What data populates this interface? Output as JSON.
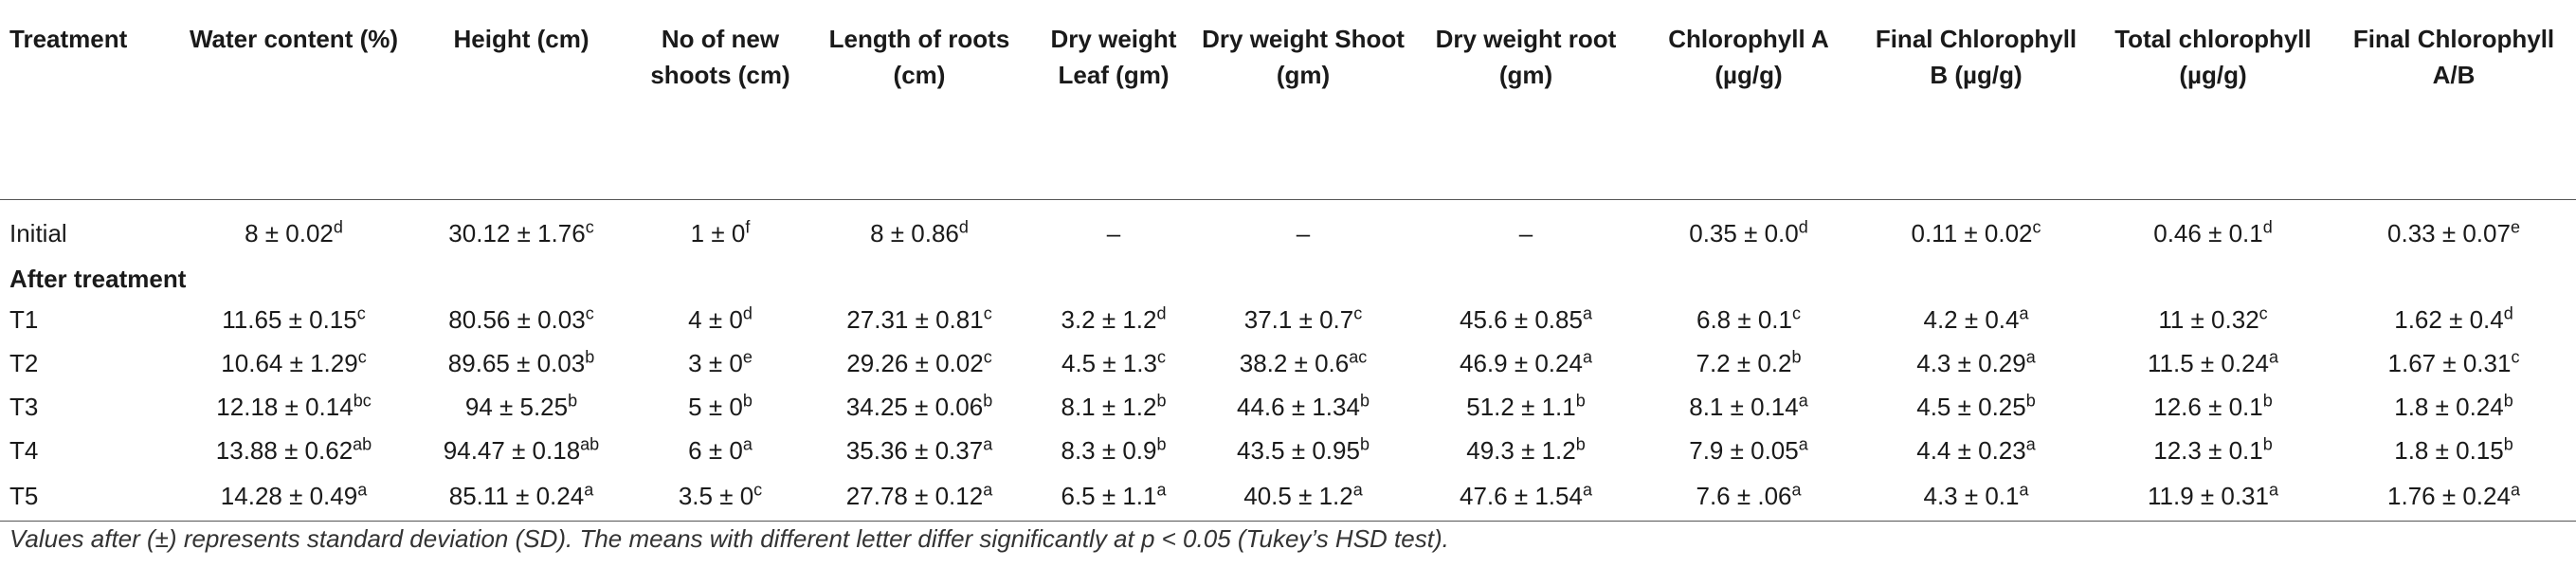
{
  "headers": [
    "Treatment",
    "Water content (%)",
    "Height (cm)",
    "No of new shoots (cm)",
    "Length of roots (cm)",
    "Dry weight Leaf (gm)",
    "Dry weight Shoot (gm)",
    "Dry weight root (gm)",
    "Chlorophyll A (µg/g)",
    "Final Chlorophyll B (µg/g)",
    "Total chlorophyll (µg/g)",
    "Final Chlorophyll A/B"
  ],
  "initial_row": {
    "label": "Initial",
    "cells": [
      {
        "v": "8 ± 0.02",
        "s": "d"
      },
      {
        "v": "30.12 ± 1.76",
        "s": "c"
      },
      {
        "v": "1 ± 0",
        "s": "f"
      },
      {
        "v": "8 ± 0.86",
        "s": "d"
      },
      {
        "v": "–",
        "s": ""
      },
      {
        "v": "–",
        "s": ""
      },
      {
        "v": "–",
        "s": ""
      },
      {
        "v": "0.35 ± 0.0",
        "s": "d"
      },
      {
        "v": "0.11 ± 0.02",
        "s": "c"
      },
      {
        "v": "0.46 ± 0.1",
        "s": "d"
      },
      {
        "v": "0.33 ± 0.07",
        "s": "e"
      }
    ]
  },
  "section_label": "After treatment",
  "rows": [
    {
      "label": "T1",
      "cells": [
        {
          "v": "11.65 ± 0.15",
          "s": "c"
        },
        {
          "v": "80.56 ± 0.03",
          "s": "c"
        },
        {
          "v": "4 ± 0",
          "s": "d"
        },
        {
          "v": "27.31 ± 0.81",
          "s": "c"
        },
        {
          "v": "3.2 ± 1.2",
          "s": "d"
        },
        {
          "v": "37.1 ± 0.7",
          "s": "c"
        },
        {
          "v": "45.6 ± 0.85",
          "s": "a"
        },
        {
          "v": "6.8 ± 0.1",
          "s": "c"
        },
        {
          "v": "4.2 ± 0.4",
          "s": "a"
        },
        {
          "v": "11 ± 0.32",
          "s": "c"
        },
        {
          "v": "1.62 ± 0.4",
          "s": "d"
        }
      ]
    },
    {
      "label": "T2",
      "cells": [
        {
          "v": "10.64 ± 1.29",
          "s": "c"
        },
        {
          "v": "89.65 ± 0.03",
          "s": "b"
        },
        {
          "v": "3 ± 0",
          "s": "e"
        },
        {
          "v": "29.26 ± 0.02",
          "s": "c"
        },
        {
          "v": "4.5 ± 1.3",
          "s": "c"
        },
        {
          "v": "38.2 ± 0.6",
          "s": "ac"
        },
        {
          "v": "46.9 ± 0.24",
          "s": "a"
        },
        {
          "v": "7.2 ± 0.2",
          "s": "b"
        },
        {
          "v": "4.3 ± 0.29",
          "s": "a"
        },
        {
          "v": "11.5 ± 0.24",
          "s": "a"
        },
        {
          "v": "1.67 ± 0.31",
          "s": "c"
        }
      ]
    },
    {
      "label": "T3",
      "cells": [
        {
          "v": "12.18 ± 0.14",
          "s": "bc"
        },
        {
          "v": "94 ± 5.25",
          "s": "b"
        },
        {
          "v": "5 ± 0",
          "s": "b"
        },
        {
          "v": "34.25 ± 0.06",
          "s": "b"
        },
        {
          "v": "8.1 ± 1.2",
          "s": "b"
        },
        {
          "v": "44.6 ± 1.34",
          "s": "b"
        },
        {
          "v": "51.2 ± 1.1",
          "s": "b"
        },
        {
          "v": "8.1 ± 0.14",
          "s": "a"
        },
        {
          "v": "4.5 ± 0.25",
          "s": "b"
        },
        {
          "v": "12.6 ± 0.1",
          "s": "b"
        },
        {
          "v": "1.8 ± 0.24",
          "s": "b"
        }
      ]
    },
    {
      "label": "T4",
      "cells": [
        {
          "v": "13.88 ± 0.62",
          "s": "ab"
        },
        {
          "v": "94.47 ± 0.18",
          "s": "ab"
        },
        {
          "v": "6 ± 0",
          "s": "a"
        },
        {
          "v": "35.36 ± 0.37",
          "s": "a"
        },
        {
          "v": "8.3 ± 0.9",
          "s": "b"
        },
        {
          "v": "43.5 ± 0.95",
          "s": "b"
        },
        {
          "v": "49.3 ± 1.2",
          "s": "b"
        },
        {
          "v": "7.9 ± 0.05",
          "s": "a"
        },
        {
          "v": "4.4 ± 0.23",
          "s": "a"
        },
        {
          "v": "12.3 ± 0.1",
          "s": "b"
        },
        {
          "v": "1.8 ± 0.15",
          "s": "b"
        }
      ]
    },
    {
      "label": "T5",
      "cells": [
        {
          "v": "14.28 ± 0.49",
          "s": "a"
        },
        {
          "v": "85.11 ± 0.24",
          "s": "a"
        },
        {
          "v": "3.5 ± 0",
          "s": "c"
        },
        {
          "v": "27.78 ± 0.12",
          "s": "a"
        },
        {
          "v": "6.5 ± 1.1",
          "s": "a"
        },
        {
          "v": "40.5 ± 1.2",
          "s": "a"
        },
        {
          "v": "47.6 ± 1.54",
          "s": "a"
        },
        {
          "v": "7.6 ± .06",
          "s": "a"
        },
        {
          "v": "4.3 ± 0.1",
          "s": "a"
        },
        {
          "v": "11.9 ± 0.31",
          "s": "a"
        },
        {
          "v": "1.76 ± 0.24",
          "s": "a"
        }
      ]
    }
  ],
  "footnote": "Values after (±) represents standard deviation (SD). The means with different letter differ significantly at p < 0.05 (Tukey’s HSD test)."
}
